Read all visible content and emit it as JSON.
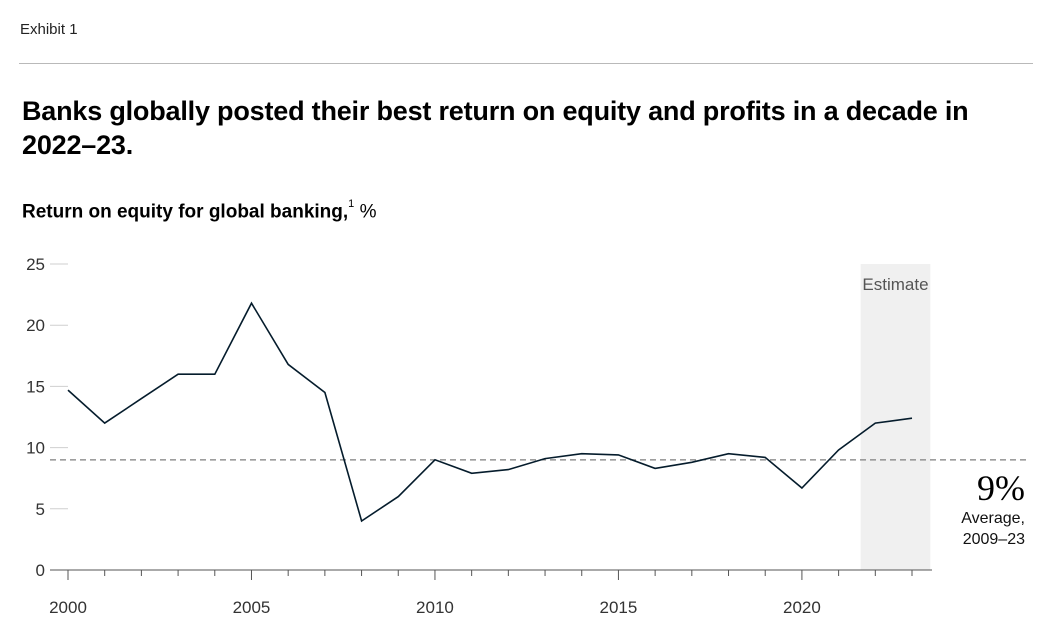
{
  "header": {
    "exhibit": "Exhibit 1",
    "title": "Banks globally posted their best return on equity and profits in a decade in 2022–23.",
    "subtitle_main": "Return on equity for global banking,",
    "subtitle_footnote": "1",
    "subtitle_unit": " %"
  },
  "chart_data": {
    "type": "line",
    "title": "Return on equity for global banking, %",
    "x": [
      2000,
      2001,
      2002,
      2003,
      2004,
      2005,
      2006,
      2007,
      2008,
      2009,
      2010,
      2011,
      2012,
      2013,
      2014,
      2015,
      2016,
      2017,
      2018,
      2019,
      2020,
      2021,
      2022,
      2023
    ],
    "series": [
      {
        "values": [
          14.7,
          12.0,
          14.0,
          16.0,
          16.0,
          21.8,
          16.8,
          14.5,
          4.0,
          6.0,
          9.0,
          7.9,
          8.2,
          9.1,
          9.5,
          9.4,
          8.3,
          8.8,
          9.5,
          9.2,
          6.7,
          9.8,
          12.0,
          12.4
        ]
      }
    ],
    "xlim": [
      2000,
      2023
    ],
    "ylim": [
      0,
      25
    ],
    "x_ticks": [
      2000,
      2005,
      2010,
      2015,
      2020
    ],
    "y_ticks": [
      0,
      5,
      10,
      15,
      20,
      25
    ],
    "reference_line": {
      "value": 9,
      "label_value": "9%",
      "label_line1": "Average,",
      "label_line2": "2009–23"
    },
    "shaded_region": {
      "label": "Estimate",
      "from": 2021.6,
      "to": 2023.5
    },
    "colors": {
      "line": "#051c2c",
      "shade": "#f0f0f0",
      "reference": "#7f7f7f"
    }
  }
}
